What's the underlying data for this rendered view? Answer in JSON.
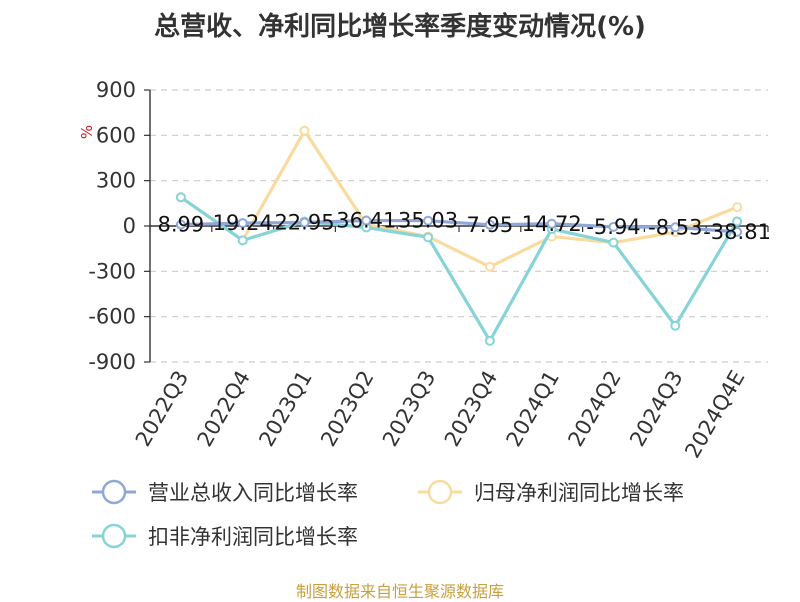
{
  "title": "总营收、净利同比增长率季度变动情况(%)",
  "source": "制图数据来自恒生聚源数据库",
  "unit_label": "%",
  "colors": {
    "revenue": "#8fa8d8",
    "net_profit": "#f9dba0",
    "deducted": "#86d4d8",
    "grid": "#cccccc",
    "axis": "#333333",
    "unit": "#cc2222"
  },
  "chart_data": {
    "type": "line",
    "title": "总营收、净利同比增长率季度变动情况(%)",
    "categories": [
      "2022Q3",
      "2022Q4",
      "2023Q1",
      "2023Q2",
      "2023Q3",
      "2023Q4",
      "2024Q1",
      "2024Q2",
      "2024Q3",
      "2024Q4E"
    ],
    "ylim": [
      -900,
      900
    ],
    "yticks": [
      900,
      600,
      300,
      0,
      -300,
      -600,
      -900
    ],
    "grid": true,
    "legend_position": "bottom",
    "series": [
      {
        "name": "营业总收入同比增长率",
        "values": [
          8.99,
          19.24,
          22.95,
          36.41,
          35.03,
          7.95,
          14.72,
          -5.94,
          -8.53,
          -38.81
        ],
        "labels": [
          "8.99",
          "19.24",
          "22.95",
          "36.41",
          "35.03",
          "7.95",
          "14.72",
          "-5.94",
          "-8.53",
          "-38.81"
        ]
      },
      {
        "name": "归母净利润同比增长率",
        "values": [
          190,
          -95,
          630,
          10,
          -70,
          -270,
          -70,
          -110,
          -40,
          125
        ]
      },
      {
        "name": "扣非净利润同比增长率",
        "values": [
          190,
          -95,
          30,
          -10,
          -75,
          -760,
          -20,
          -110,
          -660,
          30
        ]
      }
    ]
  }
}
